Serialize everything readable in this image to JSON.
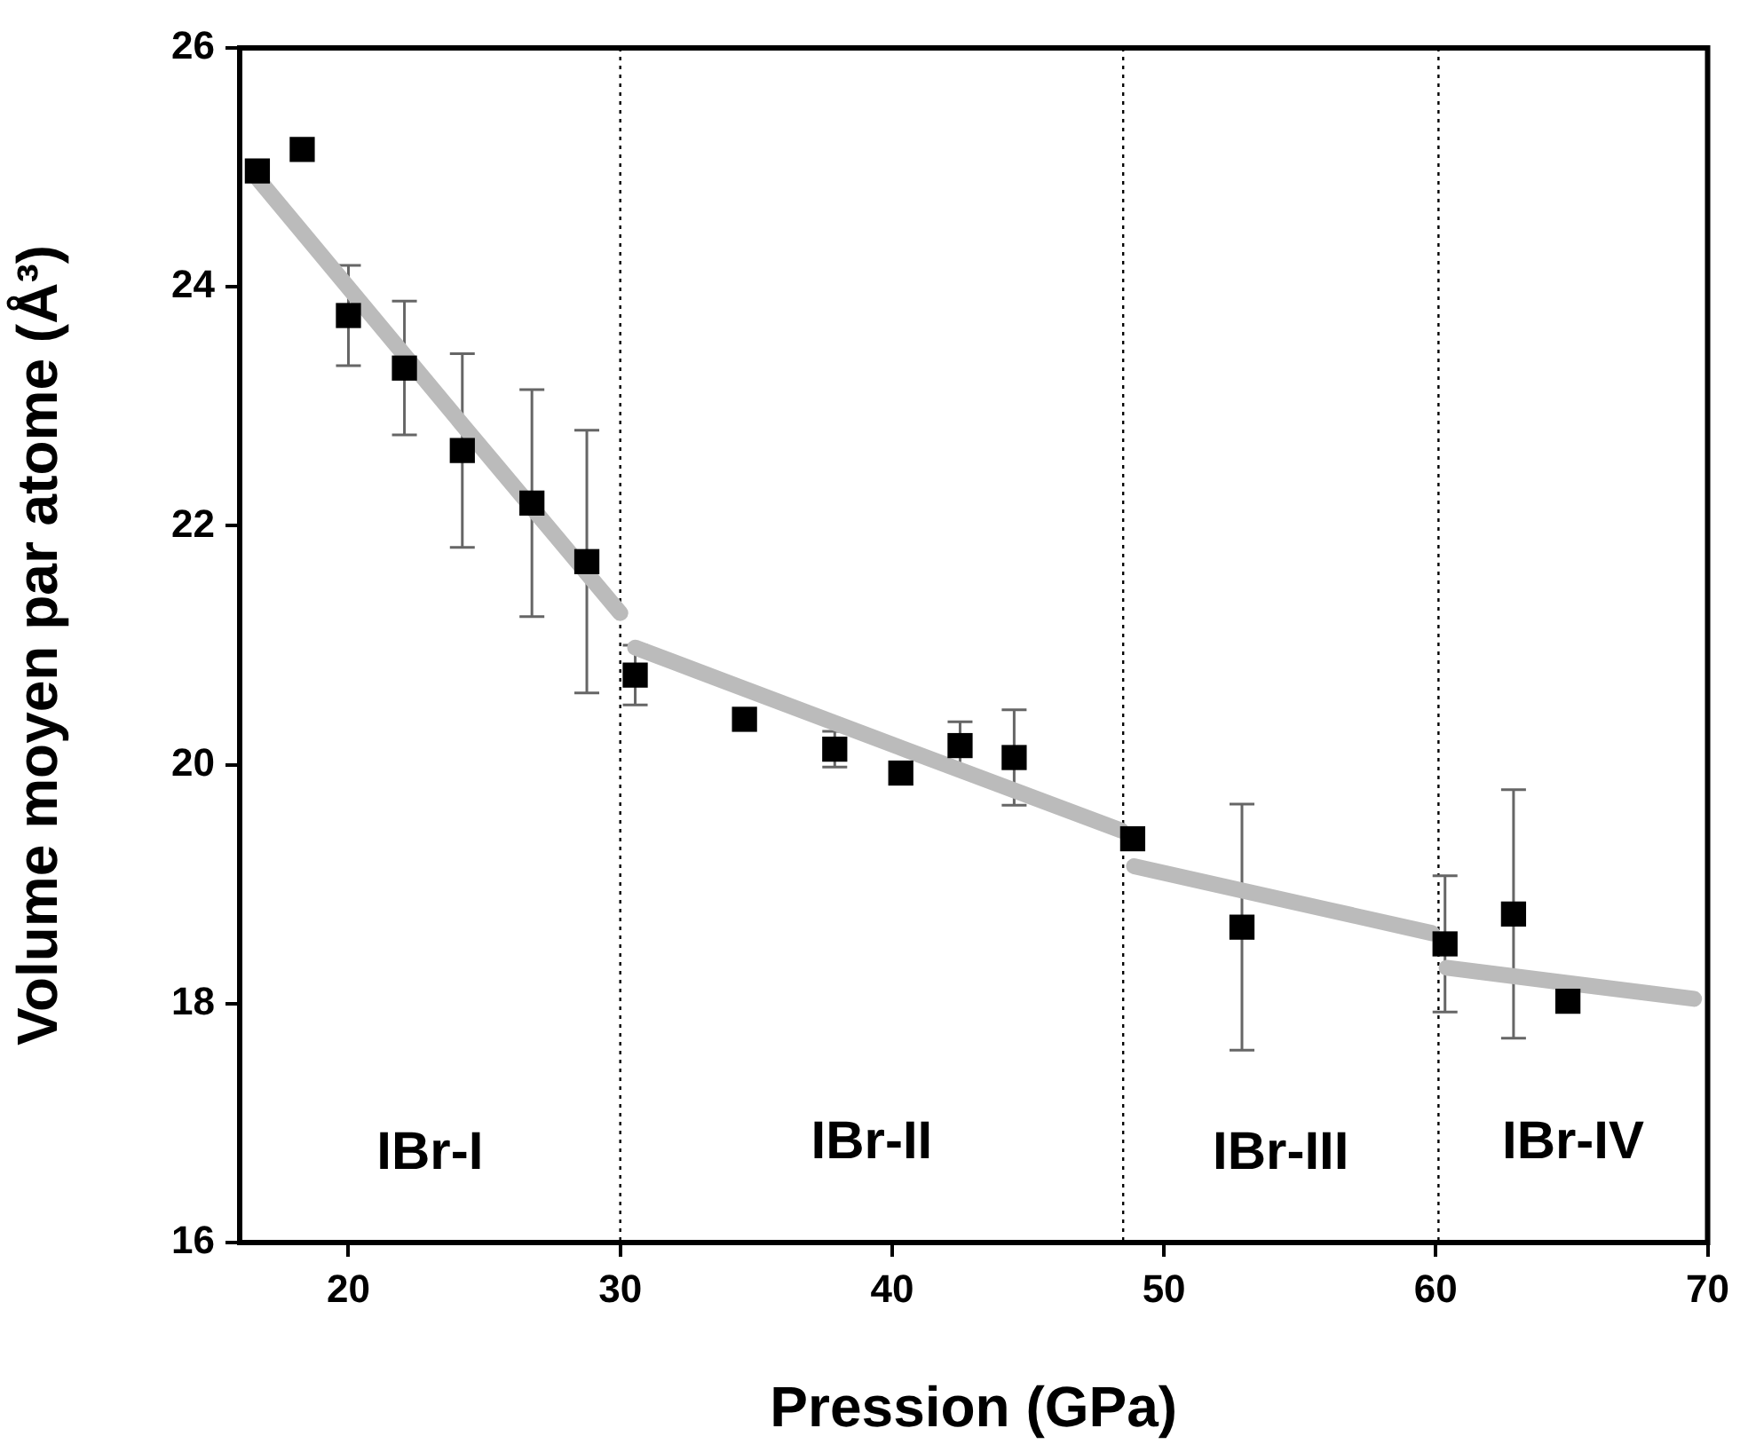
{
  "chart_data": {
    "type": "scatter",
    "xlabel": "Pression (GPa)",
    "ylabel": "Volume moyen par atome (Å³)",
    "xlim": [
      16,
      70
    ],
    "xticks": [
      20,
      30,
      40,
      50,
      60,
      70
    ],
    "ylim": [
      16,
      26
    ],
    "yticks": [
      16,
      18,
      20,
      22,
      24,
      26
    ],
    "grid": false,
    "legend": false,
    "marker": "square",
    "series": [
      {
        "color": "#000000",
        "x": [
          16.65,
          18.3,
          20.0,
          22.06,
          24.19,
          26.75,
          28.77,
          30.55,
          34.57,
          37.89,
          40.32,
          42.5,
          44.49,
          48.85,
          52.87,
          60.34,
          62.86,
          64.86
        ],
        "values": [
          24.97,
          25.15,
          23.76,
          23.32,
          22.63,
          22.19,
          21.7,
          20.75,
          20.38,
          20.13,
          19.93,
          20.16,
          20.06,
          19.38,
          18.64,
          18.5,
          18.75,
          18.02
        ],
        "errors": [
          null,
          null,
          0.42,
          0.56,
          0.81,
          0.95,
          1.1,
          0.25,
          null,
          0.15,
          null,
          0.2,
          0.4,
          null,
          1.03,
          0.57,
          1.04,
          null
        ]
      },
      {
        "type": "line",
        "color": "#bbbbbb",
        "marker": "none",
        "x": [
          16.54,
          24.14,
          30.0
        ],
        "values": [
          24.94,
          22.86,
          21.27
        ]
      },
      {
        "type": "line",
        "color": "#bbbbbb",
        "marker": "none",
        "x": [
          30.55,
          40.22,
          48.42
        ],
        "values": [
          20.98,
          20.15,
          19.45
        ]
      },
      {
        "type": "line",
        "color": "#bbbbbb",
        "marker": "none",
        "x": [
          48.9,
          59.86
        ],
        "values": [
          19.15,
          18.59
        ]
      },
      {
        "type": "line",
        "color": "#bbbbbb",
        "marker": "none",
        "x": [
          60.4,
          69.5
        ],
        "values": [
          18.3,
          18.04
        ]
      }
    ],
    "ref_lines": [
      {
        "axis": "x",
        "value": 30,
        "line_style": "dotted",
        "color": "#000000"
      },
      {
        "axis": "x",
        "value": 48.5,
        "line_style": "dotted",
        "color": "#000000"
      },
      {
        "axis": "x",
        "value": 60.1,
        "line_style": "dotted",
        "color": "#000000"
      }
    ],
    "annotations": [
      "IBr-I",
      "IBr-II",
      "IBr-III",
      "IBr-IV"
    ]
  }
}
